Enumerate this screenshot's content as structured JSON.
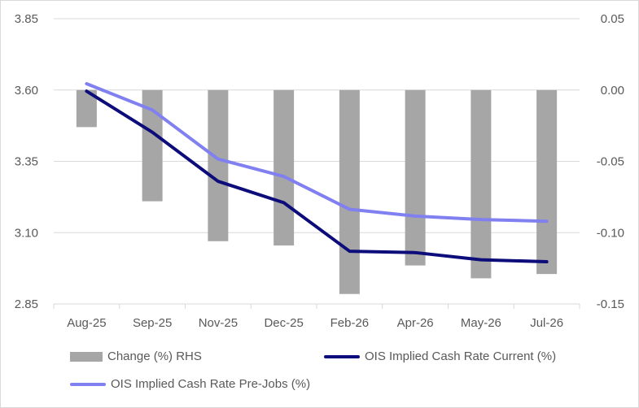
{
  "chart_data": {
    "type": "bar+line",
    "title": "",
    "categories": [
      "Aug-25",
      "Sep-25",
      "Nov-25",
      "Dec-25",
      "Feb-26",
      "Apr-26",
      "May-26",
      "Jul-26"
    ],
    "left_axis": {
      "ylim": [
        2.85,
        3.85
      ],
      "ticks": [
        "3.85",
        "3.60",
        "3.35",
        "3.10",
        "2.85"
      ],
      "tick_values": [
        3.85,
        3.6,
        3.35,
        3.1,
        2.85
      ]
    },
    "right_axis": {
      "ylim": [
        -0.15,
        0.05
      ],
      "ticks": [
        "0.05",
        "0.00",
        "-0.05",
        "-0.10",
        "-0.15"
      ],
      "tick_values": [
        0.05,
        0.0,
        -0.05,
        -0.1,
        -0.15
      ]
    },
    "series": [
      {
        "name": "Change (%) RHS",
        "kind": "bar",
        "axis": "right",
        "color": "#a6a6a6",
        "values": [
          -0.026,
          -0.078,
          -0.106,
          -0.109,
          -0.143,
          -0.123,
          -0.132,
          -0.129
        ]
      },
      {
        "name": "OIS Implied Cash Rate Current (%)",
        "kind": "line",
        "axis": "left",
        "color": "#0c0c7a",
        "values": [
          3.596,
          3.452,
          3.28,
          3.205,
          3.035,
          3.03,
          3.005,
          2.998
        ]
      },
      {
        "name": "OIS Implied Cash Rate Pre-Jobs (%)",
        "kind": "line",
        "axis": "left",
        "color": "#8080f0",
        "values": [
          3.622,
          3.53,
          3.358,
          3.297,
          3.182,
          3.158,
          3.146,
          3.14
        ]
      }
    ],
    "legend_position": "bottom",
    "grid": "horizontal"
  }
}
